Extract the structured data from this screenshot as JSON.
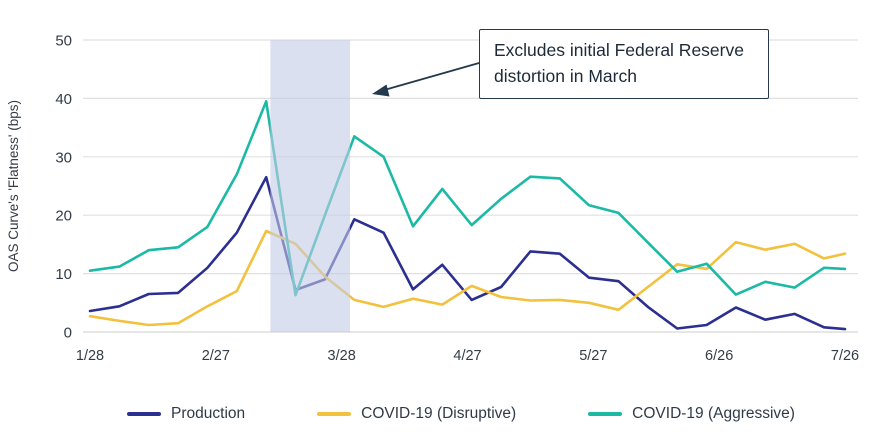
{
  "chart_data": {
    "type": "line",
    "title": "",
    "xlabel": "",
    "ylabel": "OAS Curve's 'Flatness' (bps)",
    "ylim": [
      0,
      50
    ],
    "y_ticks": [
      0,
      10,
      20,
      30,
      40,
      50
    ],
    "x_tick_labels": [
      "1/28",
      "2/27",
      "3/28",
      "4/27",
      "5/27",
      "6/26",
      "7/26"
    ],
    "grid": "horizontal",
    "legend_position": "bottom",
    "x": [
      "1/28",
      "2/4",
      "2/11",
      "2/18",
      "2/25",
      "3/3",
      "3/10",
      "3/17",
      "3/24",
      "3/31",
      "4/7",
      "4/14",
      "4/21",
      "4/28",
      "5/5",
      "5/12",
      "5/19",
      "5/26",
      "6/2",
      "6/9",
      "6/16",
      "6/23",
      "6/30",
      "7/7",
      "7/14",
      "7/21",
      "7/26"
    ],
    "series": [
      {
        "name": "Production",
        "color": "#2b2f90",
        "values": [
          3.6,
          4.4,
          6.5,
          6.7,
          11.0,
          17.0,
          26.5,
          7.2,
          9.0,
          19.3,
          17.0,
          7.3,
          11.5,
          5.5,
          7.7,
          13.8,
          13.4,
          9.3,
          8.7,
          4.3,
          0.6,
          1.2,
          4.2,
          2.1,
          3.1,
          0.8,
          0.5
        ]
      },
      {
        "name": "COVID-19 (Disruptive)",
        "color": "#f2c23e",
        "values": [
          2.7,
          1.9,
          1.2,
          1.5,
          4.4,
          7.0,
          17.3,
          15.1,
          9.5,
          5.5,
          4.3,
          5.7,
          4.7,
          7.9,
          6.0,
          5.4,
          5.5,
          5.0,
          3.8,
          7.7,
          11.6,
          10.8,
          15.4,
          14.1,
          15.1,
          12.6,
          13.4
        ]
      },
      {
        "name": "COVID-19 (Aggressive)",
        "color": "#1cb9a5",
        "values": [
          10.5,
          11.2,
          14.0,
          14.5,
          18.0,
          27.0,
          39.5,
          6.3,
          20.0,
          33.5,
          30.0,
          18.1,
          24.5,
          18.3,
          22.8,
          26.6,
          26.3,
          21.7,
          20.4,
          15.3,
          10.3,
          11.7,
          6.4,
          8.6,
          7.6,
          11.0,
          10.8
        ]
      }
    ],
    "highlight_band": {
      "from": "3/11",
      "to": "3/30",
      "color": "#c3cbe6"
    },
    "annotation": {
      "text": "Excludes initial Federal Reserve distortion in March"
    },
    "colors": {
      "gridline": "#e0e0e0",
      "zero_line": "#d6d6d6",
      "tick_text": "#333c47",
      "annotation_border": "#24394c",
      "arrow": "#24394c"
    }
  }
}
